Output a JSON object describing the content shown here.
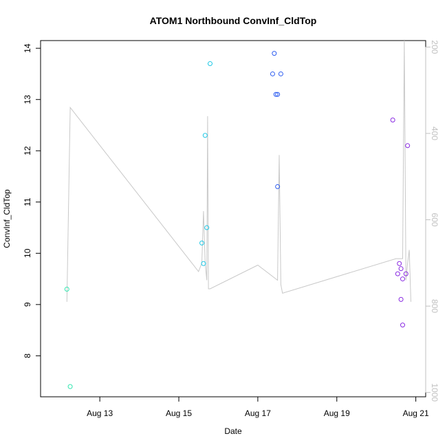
{
  "chart_data": {
    "type": "scatter",
    "title": "ATOM1 Northbound ConvInf_CldTop",
    "xlabel": "Date",
    "ylabel": "ConvInf_CldTop",
    "x_is_date": true,
    "xlim": [
      "2022-08-11T12:00",
      "2022-08-21T06:00"
    ],
    "ylim": [
      7.2,
      14.15
    ],
    "x_ticks": [
      {
        "x": "2022-08-13T00:00",
        "label": "Aug 13"
      },
      {
        "x": "2022-08-15T00:00",
        "label": "Aug 15"
      },
      {
        "x": "2022-08-17T00:00",
        "label": "Aug 17"
      },
      {
        "x": "2022-08-19T00:00",
        "label": "Aug 19"
      },
      {
        "x": "2022-08-21T00:00",
        "label": "Aug 21"
      }
    ],
    "y_ticks": [
      8,
      9,
      10,
      11,
      12,
      13,
      14
    ],
    "y2_ticks": [
      200,
      400,
      600,
      800,
      1000
    ],
    "y2lim": [
      1010,
      185
    ],
    "grid": false,
    "points": [
      {
        "x": "2022-08-12T04:00",
        "y": 9.3,
        "color": "#33e6b0"
      },
      {
        "x": "2022-08-12T06:00",
        "y": 7.4,
        "color": "#33e6b0"
      },
      {
        "x": "2022-08-15T14:00",
        "y": 10.2,
        "color": "#1ec8e6"
      },
      {
        "x": "2022-08-15T15:00",
        "y": 9.8,
        "color": "#1ec8e6"
      },
      {
        "x": "2022-08-15T16:00",
        "y": 12.3,
        "color": "#1ec8e6"
      },
      {
        "x": "2022-08-15T17:00",
        "y": 10.5,
        "color": "#1ec8e6"
      },
      {
        "x": "2022-08-15T19:00",
        "y": 13.7,
        "color": "#1ec8e6"
      },
      {
        "x": "2022-08-17T09:00",
        "y": 13.5,
        "color": "#2c5cf0"
      },
      {
        "x": "2022-08-17T10:00",
        "y": 13.9,
        "color": "#2c5cf0"
      },
      {
        "x": "2022-08-17T11:00",
        "y": 13.1,
        "color": "#2c5cf0"
      },
      {
        "x": "2022-08-17T12:00",
        "y": 13.1,
        "color": "#2c5cf0"
      },
      {
        "x": "2022-08-17T12:00",
        "y": 11.3,
        "color": "#2c5cf0"
      },
      {
        "x": "2022-08-17T14:00",
        "y": 13.5,
        "color": "#2c5cf0"
      },
      {
        "x": "2022-08-20T10:00",
        "y": 12.6,
        "color": "#8a2be2"
      },
      {
        "x": "2022-08-20T13:00",
        "y": 9.6,
        "color": "#8a2be2"
      },
      {
        "x": "2022-08-20T14:00",
        "y": 9.8,
        "color": "#8a2be2"
      },
      {
        "x": "2022-08-20T15:00",
        "y": 9.7,
        "color": "#8a2be2"
      },
      {
        "x": "2022-08-20T15:00",
        "y": 9.1,
        "color": "#8a2be2"
      },
      {
        "x": "2022-08-20T16:00",
        "y": 9.5,
        "color": "#8a2be2"
      },
      {
        "x": "2022-08-20T16:00",
        "y": 8.6,
        "color": "#8a2be2"
      },
      {
        "x": "2022-08-20T18:00",
        "y": 9.6,
        "color": "#8a2be2"
      },
      {
        "x": "2022-08-20T19:00",
        "y": 12.1,
        "color": "#8a2be2"
      }
    ],
    "line": {
      "color": "#c8c8c8",
      "axis": "right",
      "points": [
        {
          "x": "2022-08-12T04:00",
          "y": 790
        },
        {
          "x": "2022-08-12T06:00",
          "y": 340
        },
        {
          "x": "2022-08-15T12:00",
          "y": 720
        },
        {
          "x": "2022-08-15T14:00",
          "y": 700
        },
        {
          "x": "2022-08-15T15:00",
          "y": 580
        },
        {
          "x": "2022-08-15T16:00",
          "y": 700
        },
        {
          "x": "2022-08-15T17:00",
          "y": 740
        },
        {
          "x": "2022-08-15T17:30",
          "y": 360
        },
        {
          "x": "2022-08-15T18:00",
          "y": 760
        },
        {
          "x": "2022-08-15T19:00",
          "y": 760
        },
        {
          "x": "2022-08-17T00:00",
          "y": 705
        },
        {
          "x": "2022-08-17T12:00",
          "y": 740
        },
        {
          "x": "2022-08-17T13:00",
          "y": 450
        },
        {
          "x": "2022-08-17T14:00",
          "y": 750
        },
        {
          "x": "2022-08-17T15:00",
          "y": 770
        },
        {
          "x": "2022-08-20T12:00",
          "y": 690
        },
        {
          "x": "2022-08-20T16:00",
          "y": 690
        },
        {
          "x": "2022-08-20T17:00",
          "y": 185
        },
        {
          "x": "2022-08-20T18:00",
          "y": 740
        },
        {
          "x": "2022-08-20T19:00",
          "y": 700
        },
        {
          "x": "2022-08-20T20:00",
          "y": 670
        },
        {
          "x": "2022-08-20T21:00",
          "y": 790
        }
      ]
    }
  }
}
